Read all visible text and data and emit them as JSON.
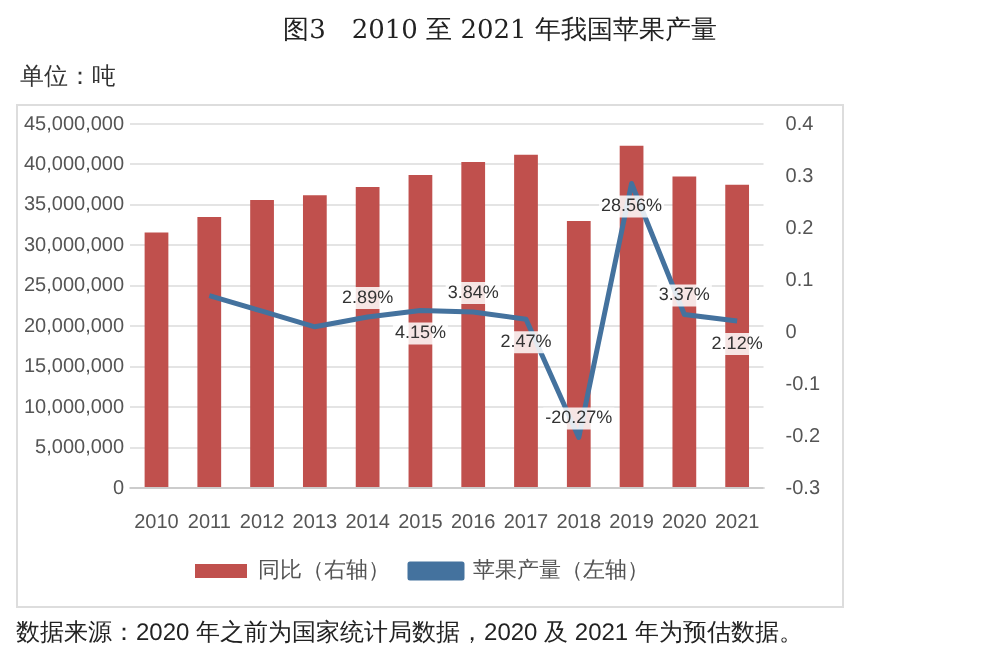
{
  "chart_data": {
    "type": "bar",
    "title": "图3　2010 至 2021 年我国苹果产量",
    "annotations": [
      "单位：吨",
      "数据来源：2020 年之前为国家统计局数据，2020 及 2021 年为预估数据。"
    ],
    "categories": [
      "2010",
      "2011",
      "2012",
      "2013",
      "2014",
      "2015",
      "2016",
      "2017",
      "2018",
      "2019",
      "2020",
      "2021"
    ],
    "series": [
      {
        "name": "同比（右轴）",
        "color": "#c0504d",
        "values": [
          31600000,
          33500000,
          35600000,
          36200000,
          37200000,
          38700000,
          40300000,
          41200000,
          33000000,
          42300000,
          38500000,
          37500000
        ]
      },
      {
        "name": "苹果产量（左轴）",
        "type": "line",
        "axis": "y2",
        "color": "#44729e",
        "values": [
          null,
          0.07,
          0.04,
          0.01,
          0.0289,
          0.0415,
          0.0384,
          0.0247,
          -0.2027,
          0.2856,
          0.0337,
          0.0212
        ],
        "value_labels": [
          null,
          null,
          null,
          null,
          "2.89%",
          "4.15%",
          "3.84%",
          "2.47%",
          "-20.27%",
          "28.56%",
          "3.37%",
          "2.12%"
        ]
      }
    ],
    "ylim": [
      0,
      45000000
    ],
    "yticks": [
      {
        "value": 0,
        "label": "0"
      },
      {
        "value": 5000000,
        "label": "5,000,000"
      },
      {
        "value": 10000000,
        "label": "10,000,000"
      },
      {
        "value": 15000000,
        "label": "15,000,000"
      },
      {
        "value": 20000000,
        "label": "20,000,000"
      },
      {
        "value": 25000000,
        "label": "25,000,000"
      },
      {
        "value": 30000000,
        "label": "30,000,000"
      },
      {
        "value": 35000000,
        "label": "35,000,000"
      },
      {
        "value": 40000000,
        "label": "40,000,000"
      },
      {
        "value": 45000000,
        "label": "45,000,000"
      }
    ],
    "y2lim": [
      -0.3,
      0.4
    ],
    "y2ticks": [
      -0.3,
      -0.2,
      -0.1,
      0,
      0.1,
      0.2,
      0.3,
      0.4
    ],
    "grid": "y",
    "legend": "bottom",
    "marker": "none",
    "line_style": "solid"
  }
}
